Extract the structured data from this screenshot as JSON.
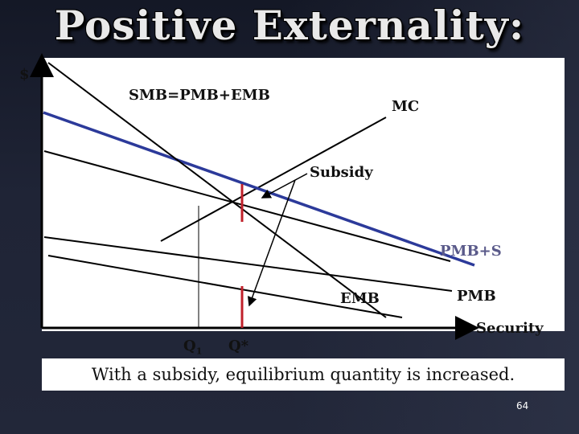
{
  "slide": {
    "title": "Positive Externality:",
    "caption": "With a subsidy, equilibrium quantity is increased.",
    "page_number": "64"
  },
  "diagram": {
    "y_axis_label": "$",
    "x_axis_label": "Security",
    "labels": {
      "smb": "SMB=PMB+EMB",
      "mc": "MC",
      "subsidy": "Subsidy",
      "pmb_s": "PMB+S",
      "emb": "EMB",
      "pmb": "PMB",
      "q1": "Q",
      "q1_sub": "1",
      "q_star": "Q*"
    }
  },
  "colors": {
    "background": "#1b1f2e",
    "panel": "#ffffff",
    "curve": "#000000",
    "smb_curve": "#2c3a9a",
    "subsidy_marker": "#c0202a",
    "title_text": "#e9e9e9"
  }
}
